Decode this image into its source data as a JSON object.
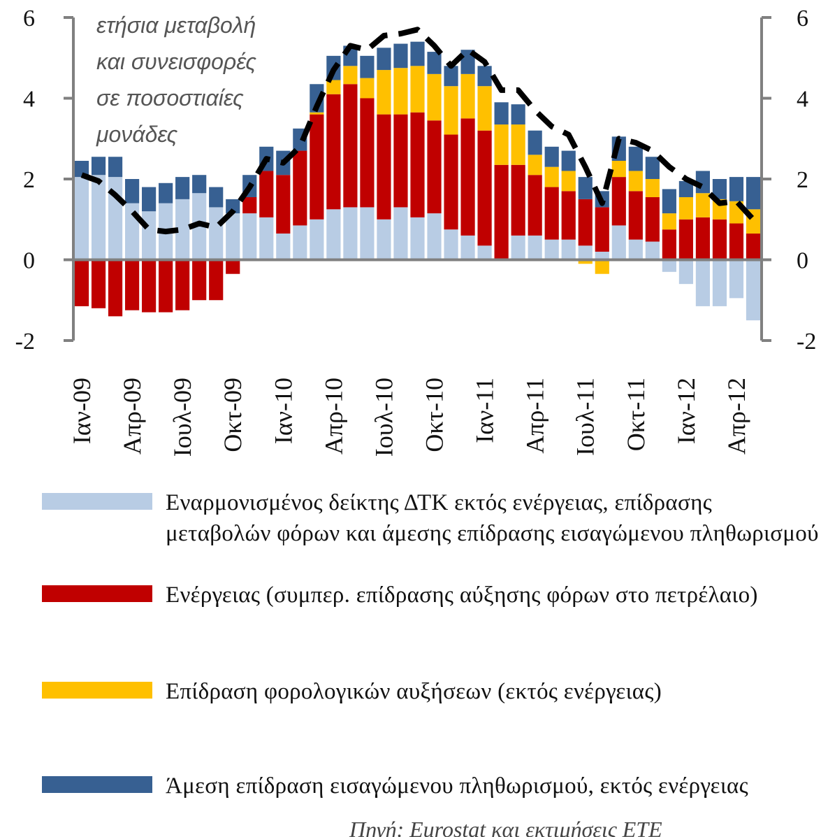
{
  "chart_data": {
    "type": "stacked_bar_line",
    "annotation": [
      "ετήσια μεταβολή",
      "και συνεισφορές",
      "σε ποσοστιαίες",
      "μονάδες"
    ],
    "source": "Πηγή: Eurostat και εκτιμήσεις ΕΤΕ",
    "categories": [
      "Ιαν-09",
      null,
      null,
      "Απρ-09",
      null,
      null,
      "Ιουλ-09",
      null,
      null,
      "Οκτ-09",
      null,
      null,
      "Ιαν-10",
      null,
      null,
      "Απρ-10",
      null,
      null,
      "Ιουλ-10",
      null,
      null,
      "Οκτ-10",
      null,
      null,
      "Ιαν-11",
      null,
      null,
      "Απρ-11",
      null,
      null,
      "Ιουλ-11",
      null,
      null,
      "Οκτ-11",
      null,
      null,
      "Ιαν-12",
      null,
      null,
      "Απρ-12",
      null
    ],
    "ylim": [
      -2,
      6
    ],
    "yticks": [
      -2,
      0,
      2,
      4,
      6
    ],
    "y2lim": [
      -2,
      6
    ],
    "y2ticks": [
      -2,
      0,
      2,
      4,
      6
    ],
    "series": [
      {
        "name": "Εναρμονισμένος δείκτης ΔΤΚ εκτός ενέργειας, επίδρασης μεταβολών φόρων και άμεσης επίδρασης εισαγώμενου πληθωρισμού",
        "color": "#b8cce4",
        "values": [
          2.05,
          2.1,
          2.05,
          1.4,
          1.2,
          1.4,
          1.5,
          1.65,
          1.3,
          1.15,
          1.15,
          1.05,
          0.65,
          0.85,
          1.0,
          1.25,
          1.3,
          1.3,
          1.0,
          1.3,
          1.05,
          1.15,
          0.75,
          0.6,
          0.35,
          0,
          0.6,
          0.6,
          0.5,
          0.5,
          0.35,
          0.2,
          0.85,
          0.5,
          0.45,
          -0.3,
          -0.6,
          -1.15,
          -1.15,
          -0.95,
          -1.5
        ]
      },
      {
        "name": "Ενέργειας (συμπερ. επίδρασης αύξησης φόρων στο πετρέλαιο)",
        "color": "#c00000",
        "values": [
          -1.15,
          -1.2,
          -1.4,
          -1.25,
          -1.3,
          -1.3,
          -1.25,
          -1.0,
          -1.0,
          -0.35,
          0.4,
          1.15,
          1.45,
          1.85,
          2.6,
          2.85,
          3.05,
          2.7,
          2.6,
          2.3,
          2.6,
          2.3,
          2.35,
          2.9,
          2.85,
          2.35,
          1.75,
          1.5,
          1.3,
          1.2,
          1.15,
          1.1,
          1.2,
          1.2,
          1.1,
          0.75,
          1.0,
          1.05,
          1.0,
          0.9,
          0.65
        ]
      },
      {
        "name": "Επίδραση φορολογικών αυξήσεων (εκτός ενέργειας)",
        "color": "#ffc000",
        "values": [
          0,
          0,
          0,
          0,
          0,
          0,
          0,
          0,
          0,
          0,
          0,
          0,
          0,
          0,
          0.05,
          0.35,
          0.45,
          0.5,
          1.1,
          1.15,
          1.15,
          1.15,
          1.2,
          1.1,
          1.1,
          1.0,
          1.0,
          0.5,
          0.5,
          0.5,
          -0.1,
          -0.35,
          0.4,
          0.5,
          0.45,
          0.4,
          0.55,
          0.6,
          0.5,
          0.55,
          0.6
        ]
      },
      {
        "name": "Άμεση επίδραση εισαγώμενου πληθωρισμού, εκτός ενέργειας",
        "color": "#376092",
        "values": [
          0.4,
          0.45,
          0.5,
          0.6,
          0.6,
          0.5,
          0.55,
          0.45,
          0.5,
          0.35,
          0.55,
          0.6,
          0.6,
          0.55,
          0.7,
          0.6,
          0.5,
          0.55,
          0.55,
          0.6,
          0.6,
          0.55,
          0.5,
          0.6,
          0.5,
          0.55,
          0.5,
          0.6,
          0.5,
          0.5,
          0.55,
          0.4,
          0.6,
          0.6,
          0.55,
          0.6,
          0.4,
          0.55,
          0.5,
          0.6,
          0.8
        ]
      },
      {
        "type": "line",
        "color": "#000000",
        "values": [
          2.1,
          1.95,
          1.6,
          1.2,
          0.75,
          0.7,
          0.75,
          0.9,
          0.8,
          1.2,
          1.8,
          2.5,
          2.4,
          2.8,
          3.8,
          4.7,
          5.3,
          5.2,
          5.55,
          5.6,
          5.7,
          5.3,
          4.8,
          5.2,
          4.9,
          4.2,
          4.2,
          3.7,
          3.3,
          3.1,
          2.3,
          1.4,
          3.0,
          2.9,
          2.7,
          2.3,
          2.0,
          1.8,
          1.4,
          1.45,
          1.0
        ]
      }
    ]
  }
}
